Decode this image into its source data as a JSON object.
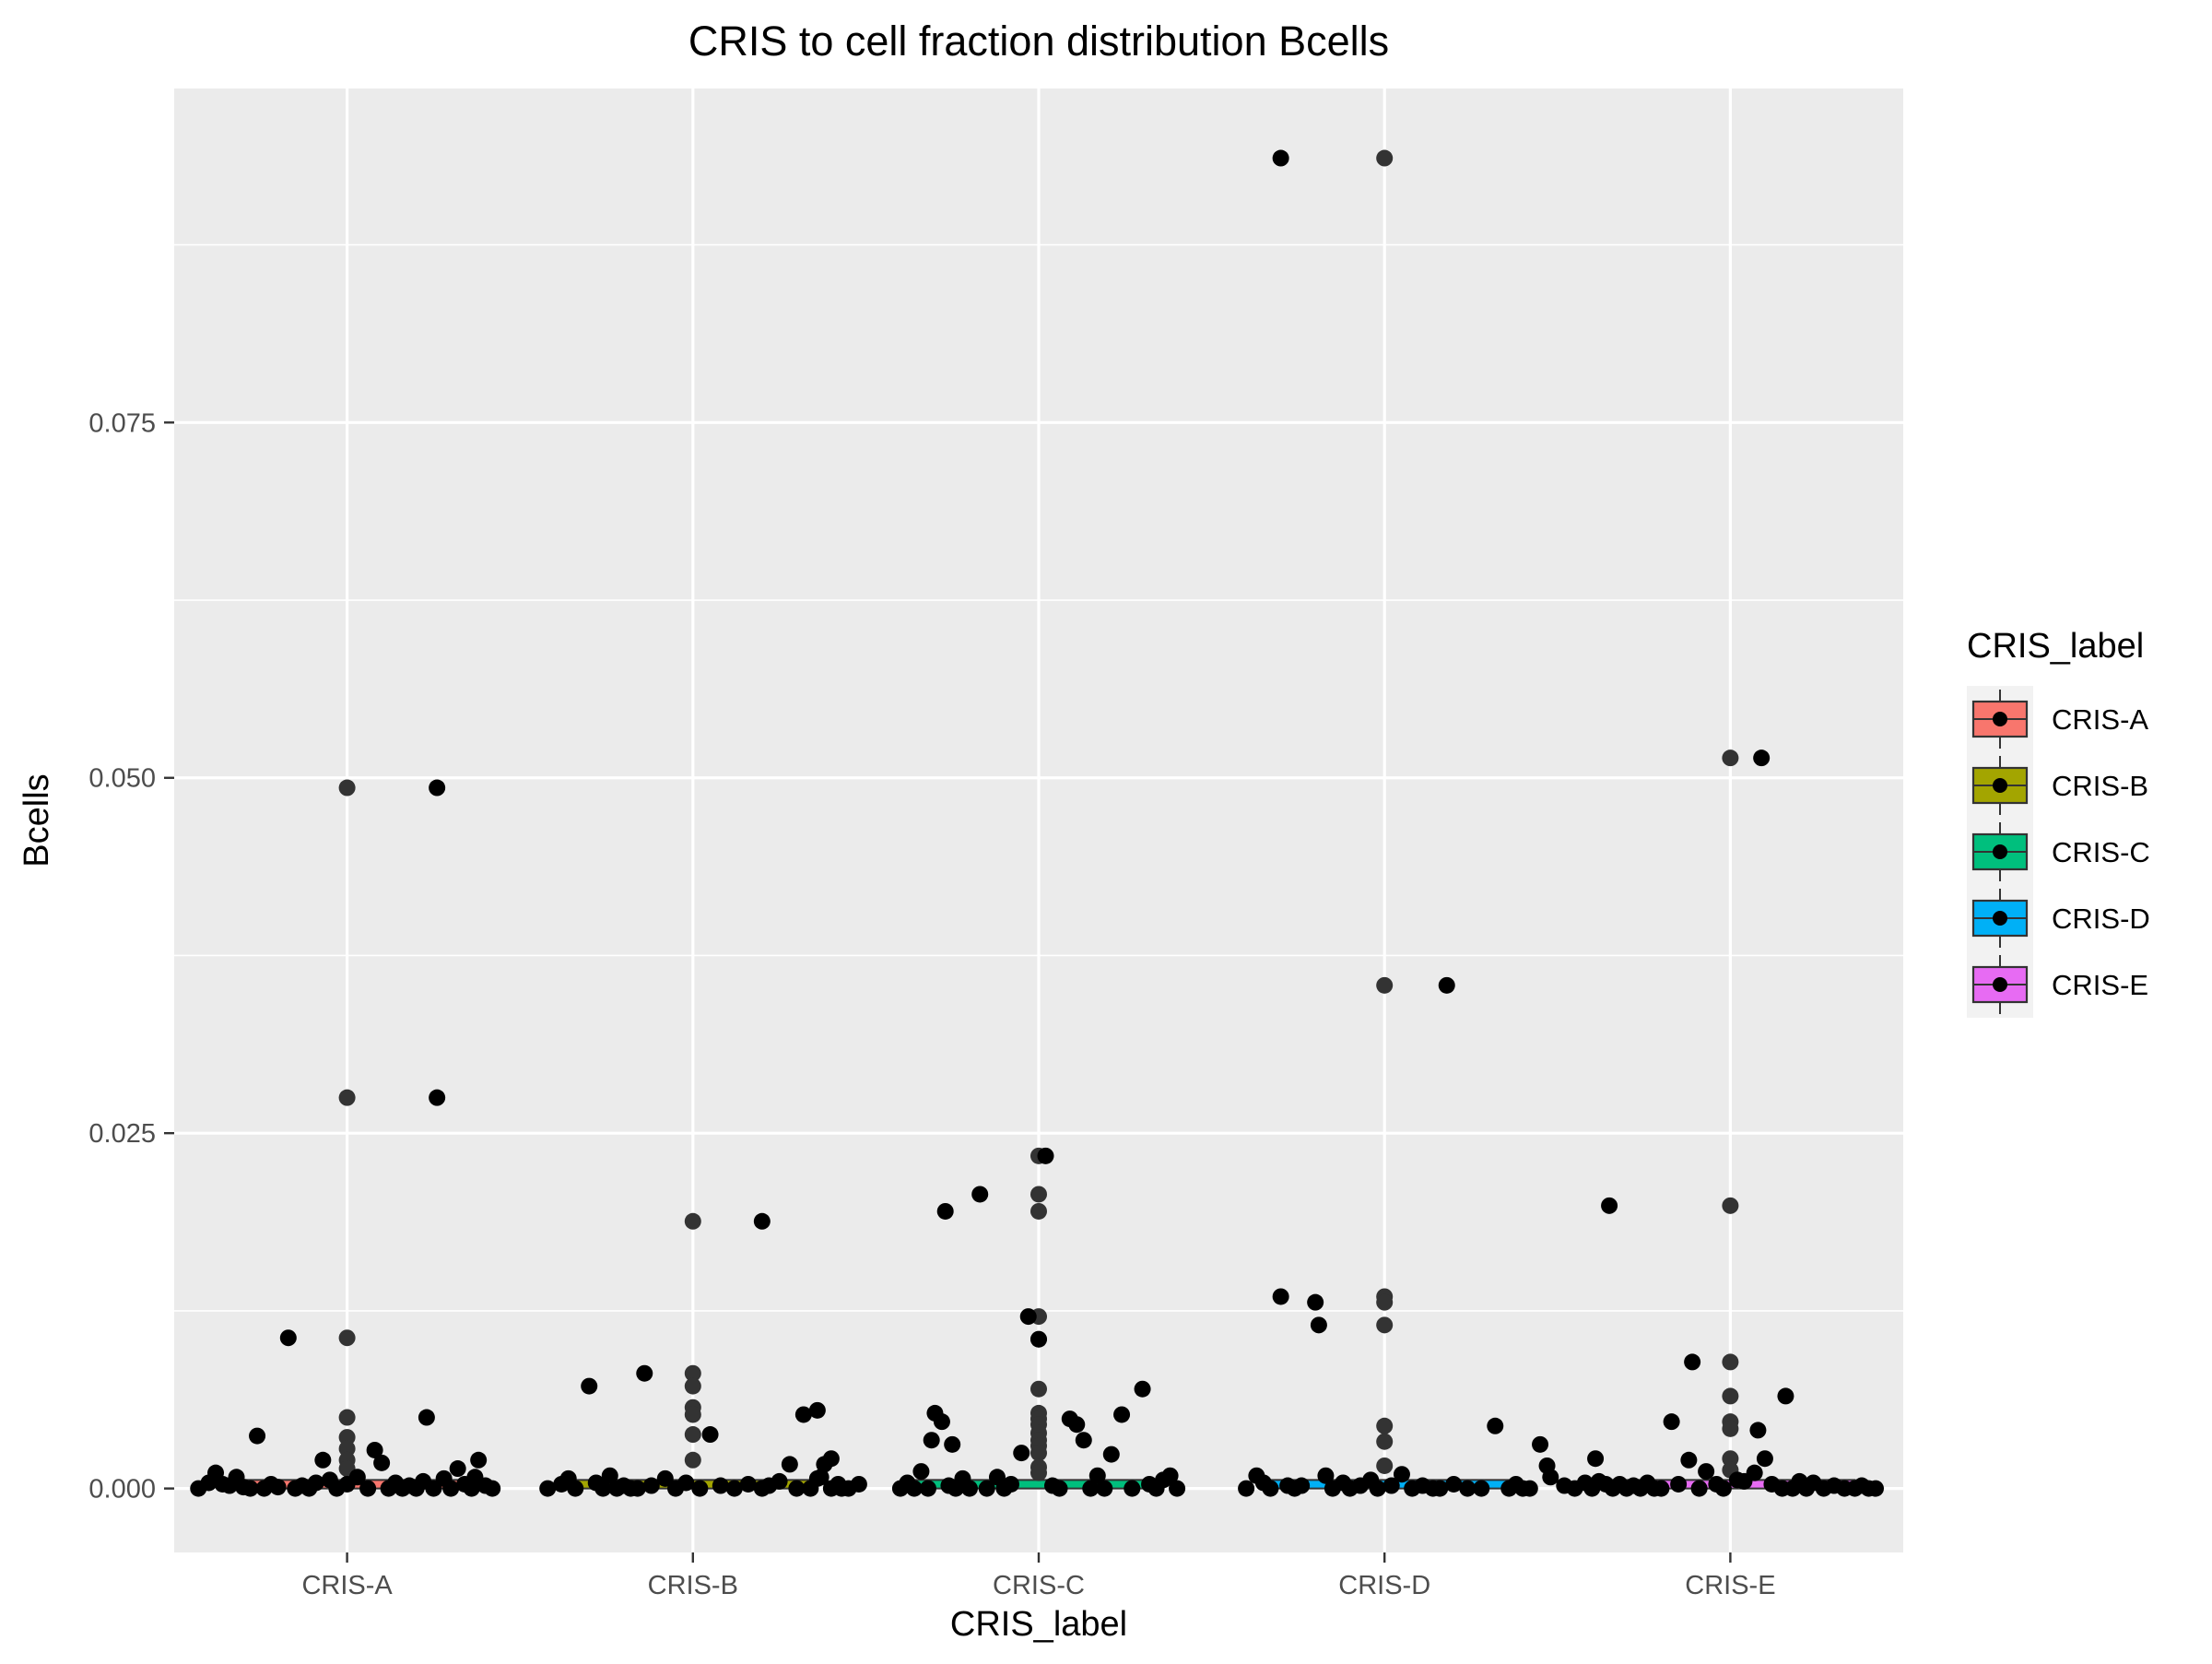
{
  "chart_data": {
    "type": "scatter",
    "title": "CRIS to cell fraction distribution Bcells",
    "xlabel": "CRIS_label",
    "ylabel": "Bcells",
    "categories": [
      "CRIS-A",
      "CRIS-B",
      "CRIS-C",
      "CRIS-D",
      "CRIS-E"
    ],
    "ylim": [
      -0.0045,
      0.0985
    ],
    "y_ticks": [
      0.0,
      0.025,
      0.05,
      0.075
    ],
    "y_tick_labels": [
      "0.000",
      "0.025",
      "0.050",
      "0.075"
    ],
    "grid": true,
    "legend": {
      "title": "CRIS_label",
      "position": "right",
      "entries": [
        {
          "label": "CRIS-A",
          "color": "#F8766D"
        },
        {
          "label": "CRIS-B",
          "color": "#A3A500"
        },
        {
          "label": "CRIS-C",
          "color": "#00BF7D"
        },
        {
          "label": "CRIS-D",
          "color": "#00B0F6"
        },
        {
          "label": "CRIS-E",
          "color": "#E76BF3"
        }
      ]
    },
    "colors": {
      "panel_background": "#EBEBEB",
      "grid": "#FFFFFF",
      "points": "#000000",
      "outlier_points": "#333333"
    },
    "series": [
      {
        "category": "CRIS-A",
        "jitter_points": [
          [
            -0.43,
            0.0
          ],
          [
            -0.4,
            0.0004
          ],
          [
            -0.38,
            0.0011
          ],
          [
            -0.36,
            0.0003
          ],
          [
            -0.34,
            0.0002
          ],
          [
            -0.32,
            0.0008
          ],
          [
            -0.3,
            0.0001
          ],
          [
            -0.28,
            0.0
          ],
          [
            -0.26,
            0.0037
          ],
          [
            -0.24,
            0.0
          ],
          [
            -0.22,
            0.0003
          ],
          [
            -0.2,
            0.0001
          ],
          [
            -0.17,
            0.0106
          ],
          [
            -0.15,
            0.0
          ],
          [
            -0.13,
            0.0002
          ],
          [
            -0.11,
            0.0
          ],
          [
            -0.09,
            0.0004
          ],
          [
            -0.07,
            0.002
          ],
          [
            -0.05,
            0.0006
          ],
          [
            -0.03,
            0.0
          ],
          [
            0.0,
            0.0003
          ],
          [
            0.03,
            0.0008
          ],
          [
            0.06,
            0.0
          ],
          [
            0.08,
            0.0027
          ],
          [
            0.1,
            0.0018
          ],
          [
            0.12,
            0.0
          ],
          [
            0.14,
            0.0004
          ],
          [
            0.16,
            0.0
          ],
          [
            0.18,
            0.0002
          ],
          [
            0.2,
            0.0
          ],
          [
            0.22,
            0.0005
          ],
          [
            0.23,
            0.005
          ],
          [
            0.25,
            0.0
          ],
          [
            0.26,
            0.0275
          ],
          [
            0.26,
            0.0493
          ],
          [
            0.28,
            0.0007
          ],
          [
            0.3,
            0.0
          ],
          [
            0.32,
            0.0014
          ],
          [
            0.34,
            0.0003
          ],
          [
            0.36,
            0.0
          ],
          [
            0.37,
            0.0008
          ],
          [
            0.38,
            0.002
          ],
          [
            0.4,
            0.0002
          ],
          [
            0.42,
            0.0
          ]
        ],
        "outliers": [
          0.0493,
          0.0275,
          0.0106,
          0.005,
          0.0036,
          0.0028,
          0.002,
          0.0014
        ]
      },
      {
        "category": "CRIS-B",
        "jitter_points": [
          [
            -0.42,
            0.0
          ],
          [
            -0.38,
            0.0003
          ],
          [
            -0.36,
            0.0007
          ],
          [
            -0.34,
            0.0
          ],
          [
            -0.3,
            0.0072
          ],
          [
            -0.28,
            0.0004
          ],
          [
            -0.26,
            0.0
          ],
          [
            -0.24,
            0.0009
          ],
          [
            -0.22,
            0.0
          ],
          [
            -0.2,
            0.0002
          ],
          [
            -0.18,
            0.0
          ],
          [
            -0.16,
            0.0
          ],
          [
            -0.14,
            0.0081
          ],
          [
            -0.12,
            0.0002
          ],
          [
            -0.08,
            0.0007
          ],
          [
            -0.05,
            0.0
          ],
          [
            -0.02,
            0.0004
          ],
          [
            0.02,
            0.0
          ],
          [
            0.05,
            0.0038
          ],
          [
            0.08,
            0.0002
          ],
          [
            0.12,
            0.0
          ],
          [
            0.16,
            0.0003
          ],
          [
            0.2,
            0.0
          ],
          [
            0.22,
            0.0002
          ],
          [
            0.25,
            0.0005
          ],
          [
            0.28,
            0.0017
          ],
          [
            0.3,
            0.0
          ],
          [
            0.32,
            0.0052
          ],
          [
            0.34,
            0.0
          ],
          [
            0.36,
            0.0007
          ],
          [
            0.37,
            0.0008
          ],
          [
            0.38,
            0.0017
          ],
          [
            0.4,
            0.0021
          ],
          [
            0.42,
            0.0003
          ],
          [
            0.43,
            0.0
          ],
          [
            0.45,
            0.0
          ],
          [
            0.48,
            0.0003
          ],
          [
            0.2,
            0.0188
          ],
          [
            0.36,
            0.0055
          ],
          [
            0.4,
            0.0
          ]
        ],
        "outliers": [
          0.0188,
          0.0081,
          0.0072,
          0.0057,
          0.0052,
          0.0038,
          0.002
        ]
      },
      {
        "category": "CRIS-C",
        "jitter_points": [
          [
            -0.4,
            0.0
          ],
          [
            -0.38,
            0.0004
          ],
          [
            -0.36,
            0.0
          ],
          [
            -0.34,
            0.0012
          ],
          [
            -0.32,
            0.0
          ],
          [
            -0.31,
            0.0034
          ],
          [
            -0.3,
            0.0053
          ],
          [
            -0.28,
            0.0047
          ],
          [
            -0.27,
            0.0195
          ],
          [
            -0.26,
            0.0002
          ],
          [
            -0.25,
            0.0031
          ],
          [
            -0.24,
            0.0
          ],
          [
            -0.22,
            0.0007
          ],
          [
            -0.2,
            0.0
          ],
          [
            -0.17,
            0.0207
          ],
          [
            -0.15,
            0.0
          ],
          [
            -0.12,
            0.0008
          ],
          [
            -0.1,
            0.0
          ],
          [
            -0.08,
            0.0003
          ],
          [
            -0.05,
            0.0025
          ],
          [
            -0.03,
            0.0121
          ],
          [
            0.0,
            0.0105
          ],
          [
            0.02,
            0.0234
          ],
          [
            0.04,
            0.0002
          ],
          [
            0.06,
            0.0
          ],
          [
            0.09,
            0.0049
          ],
          [
            0.11,
            0.0045
          ],
          [
            0.13,
            0.0034
          ],
          [
            0.15,
            0.0
          ],
          [
            0.17,
            0.0009
          ],
          [
            0.19,
            0.0
          ],
          [
            0.21,
            0.0024
          ],
          [
            0.24,
            0.0052
          ],
          [
            0.27,
            0.0
          ],
          [
            0.3,
            0.007
          ],
          [
            0.32,
            0.0003
          ],
          [
            0.34,
            0.0
          ],
          [
            0.36,
            0.0006
          ],
          [
            0.38,
            0.0009
          ],
          [
            0.4,
            0.0
          ]
        ],
        "outliers": [
          0.0234,
          0.0207,
          0.0195,
          0.0121,
          0.0105,
          0.007,
          0.0053,
          0.0049,
          0.0045,
          0.0039,
          0.0034,
          0.003,
          0.0025,
          0.0015,
          0.0011
        ]
      },
      {
        "category": "CRIS-D",
        "jitter_points": [
          [
            -0.4,
            0.0
          ],
          [
            -0.37,
            0.0009
          ],
          [
            -0.35,
            0.0004
          ],
          [
            -0.33,
            0.0
          ],
          [
            -0.3,
            0.0135
          ],
          [
            -0.3,
            0.0936
          ],
          [
            -0.28,
            0.0002
          ],
          [
            -0.26,
            0.0
          ],
          [
            -0.24,
            0.0002
          ],
          [
            -0.2,
            0.0131
          ],
          [
            -0.19,
            0.0115
          ],
          [
            -0.17,
            0.0009
          ],
          [
            -0.15,
            0.0
          ],
          [
            -0.12,
            0.0004
          ],
          [
            -0.1,
            0.0
          ],
          [
            -0.07,
            0.0002
          ],
          [
            -0.04,
            0.0006
          ],
          [
            -0.02,
            0.0
          ],
          [
            0.02,
            0.0002
          ],
          [
            0.05,
            0.001
          ],
          [
            0.08,
            0.0
          ],
          [
            0.11,
            0.0002
          ],
          [
            0.14,
            0.0
          ],
          [
            0.16,
            0.0
          ],
          [
            0.18,
            0.0354
          ],
          [
            0.2,
            0.0003
          ],
          [
            0.24,
            0.0
          ],
          [
            0.28,
            0.0
          ],
          [
            0.32,
            0.0044
          ],
          [
            0.36,
            0.0
          ],
          [
            0.38,
            0.0003
          ],
          [
            0.4,
            0.0
          ],
          [
            0.42,
            0.0
          ],
          [
            0.45,
            0.0031
          ],
          [
            0.47,
            0.0016
          ],
          [
            0.48,
            0.0008
          ],
          [
            0.52,
            0.0002
          ],
          [
            0.55,
            0.0
          ],
          [
            0.58,
            0.0004
          ],
          [
            0.6,
            0.0
          ]
        ],
        "outliers": [
          0.0936,
          0.0354,
          0.0135,
          0.0131,
          0.0115,
          0.0044,
          0.0033,
          0.0016
        ]
      },
      {
        "category": "CRIS-E",
        "jitter_points": [
          [
            -0.39,
            0.0021
          ],
          [
            -0.38,
            0.0005
          ],
          [
            -0.36,
            0.0003
          ],
          [
            -0.35,
            0.0199
          ],
          [
            -0.34,
            0.0
          ],
          [
            -0.32,
            0.0003
          ],
          [
            -0.3,
            0.0
          ],
          [
            -0.28,
            0.0002
          ],
          [
            -0.26,
            0.0
          ],
          [
            -0.24,
            0.0004
          ],
          [
            -0.22,
            0.0
          ],
          [
            -0.2,
            0.0
          ],
          [
            -0.17,
            0.0047
          ],
          [
            -0.15,
            0.0003
          ],
          [
            -0.12,
            0.002
          ],
          [
            -0.11,
            0.0089
          ],
          [
            -0.09,
            0.0
          ],
          [
            -0.07,
            0.0012
          ],
          [
            -0.04,
            0.0003
          ],
          [
            -0.02,
            0.0
          ],
          [
            0.02,
            0.0006
          ],
          [
            0.04,
            0.0005
          ],
          [
            0.07,
            0.0011
          ],
          [
            0.08,
            0.0041
          ],
          [
            0.09,
            0.0514
          ],
          [
            0.1,
            0.0021
          ],
          [
            0.12,
            0.0003
          ],
          [
            0.15,
            0.0
          ],
          [
            0.16,
            0.0065
          ],
          [
            0.18,
            0.0
          ],
          [
            0.2,
            0.0005
          ],
          [
            0.22,
            0.0
          ],
          [
            0.24,
            0.0004
          ],
          [
            0.27,
            0.0
          ],
          [
            0.3,
            0.0002
          ],
          [
            0.33,
            0.0
          ],
          [
            0.36,
            0.0
          ],
          [
            0.38,
            0.0002
          ],
          [
            0.4,
            0.0
          ],
          [
            0.42,
            0.0
          ]
        ],
        "outliers": [
          0.0514,
          0.0199,
          0.0089,
          0.0065,
          0.0047,
          0.0042,
          0.0021,
          0.0013
        ]
      }
    ]
  }
}
